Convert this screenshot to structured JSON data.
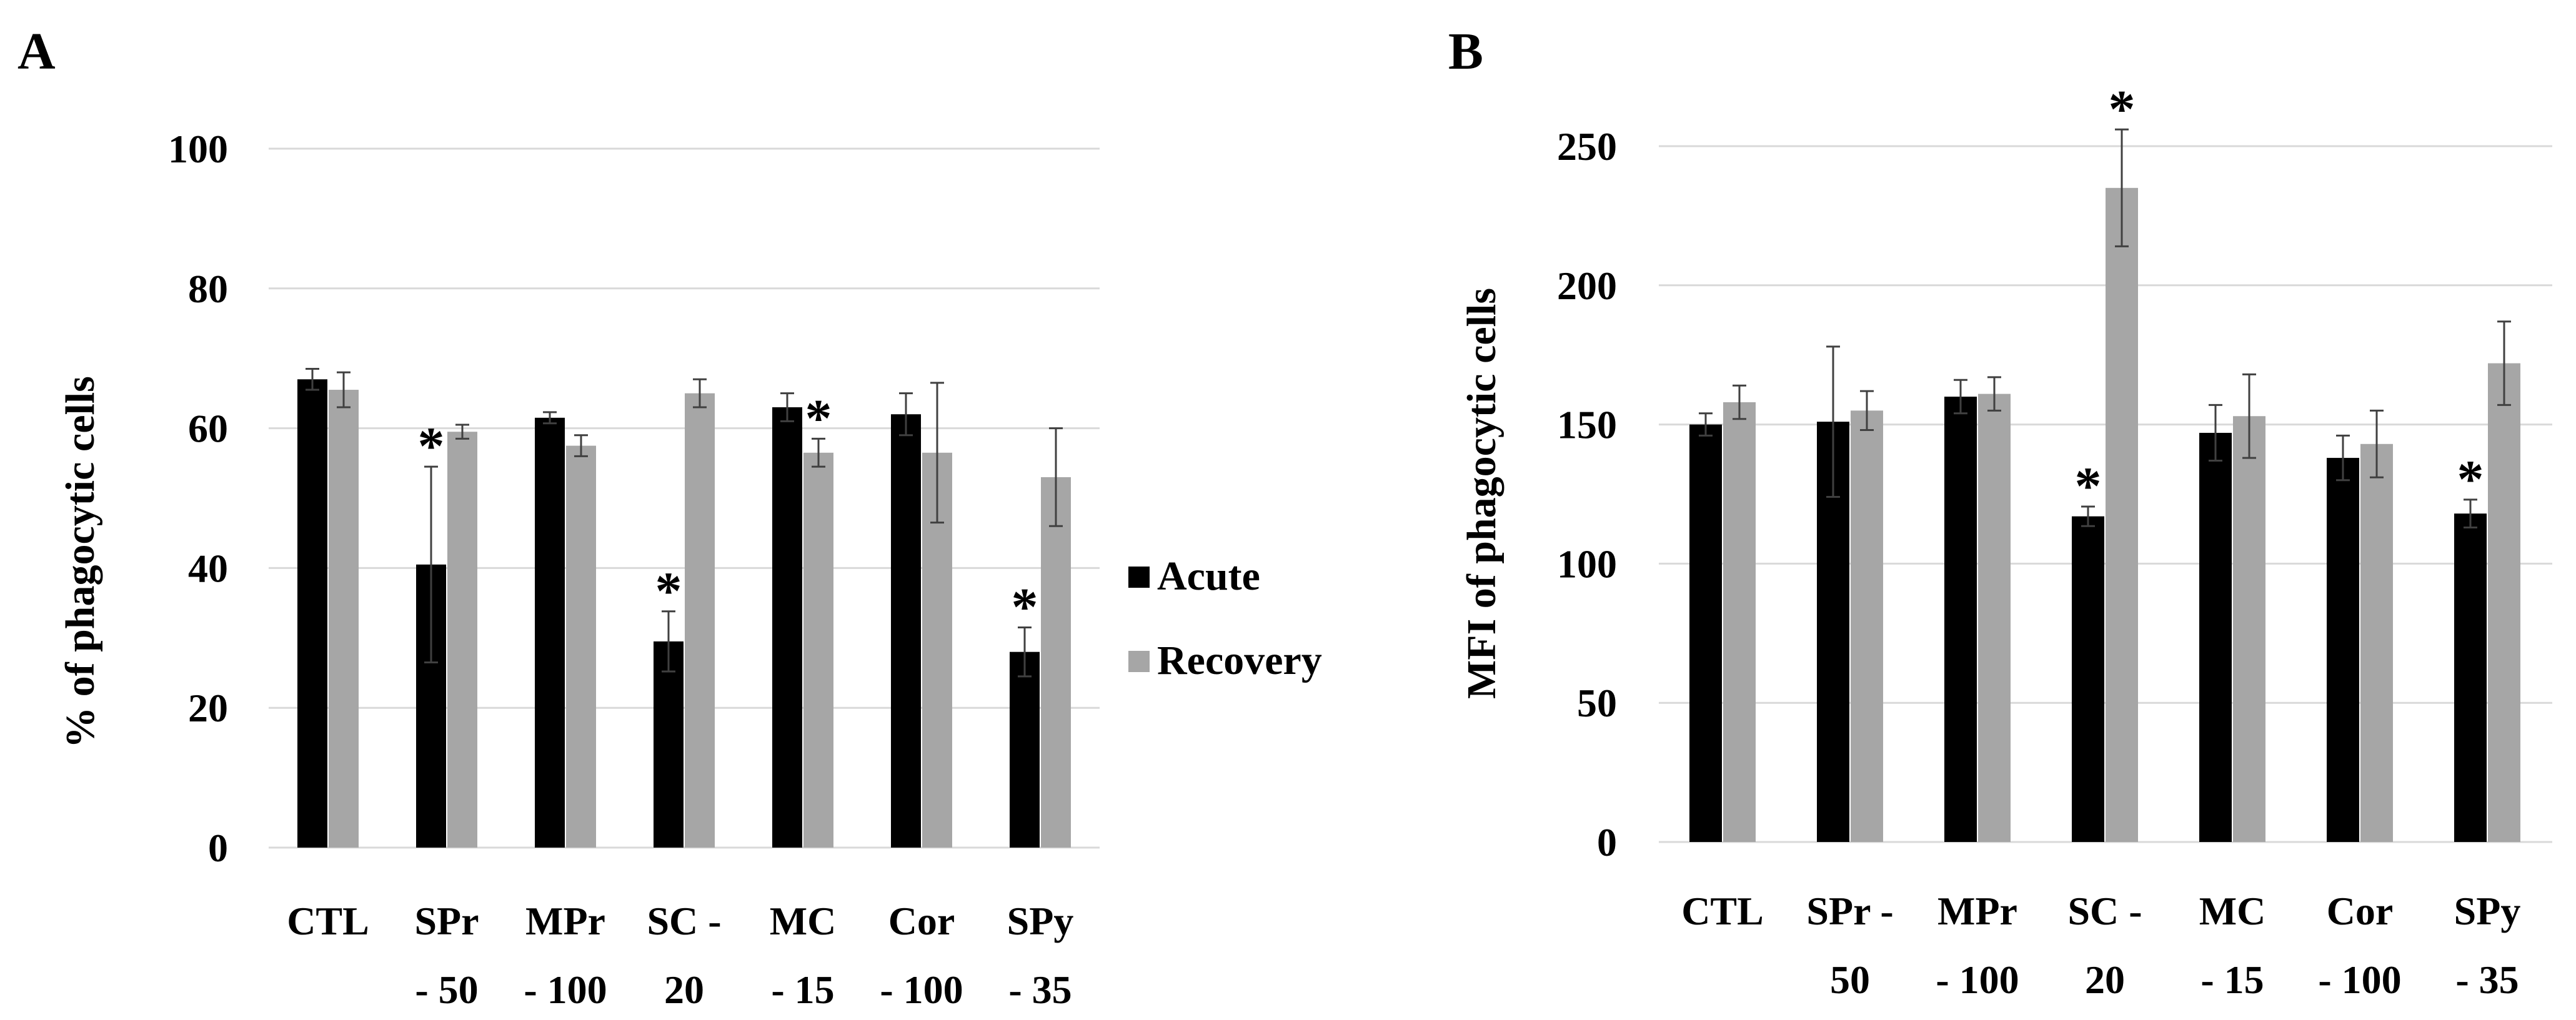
{
  "colors": {
    "acute": "#000000",
    "recovery": "#a6a6a6",
    "grid": "#d9d9d9",
    "error": "#404040"
  },
  "legend": {
    "acute": "Acute",
    "recovery": "Recovery"
  },
  "chart_data": [
    {
      "panel": "A",
      "type": "bar",
      "ylabel": "% of phagocytic cells",
      "ylim": [
        0,
        100
      ],
      "yticks": [
        0,
        20,
        40,
        60,
        80,
        100
      ],
      "grid": true,
      "legend_position": "right",
      "categories": [
        [
          "CTL"
        ],
        [
          "SPr",
          "- 50"
        ],
        [
          "MPr",
          "- 100"
        ],
        [
          "SC -",
          "20"
        ],
        [
          "MC",
          "- 15"
        ],
        [
          "Cor",
          "- 100"
        ],
        [
          "SPy",
          "- 35"
        ]
      ],
      "series": [
        {
          "name": "Acute",
          "values": [
            67,
            40.5,
            61.5,
            29.5,
            63,
            62,
            28
          ],
          "errors": [
            1.5,
            14,
            0.8,
            4.3,
            2,
            3,
            3.5
          ],
          "significant": [
            false,
            true,
            false,
            true,
            false,
            false,
            true
          ]
        },
        {
          "name": "Recovery",
          "values": [
            65.5,
            59.5,
            57.5,
            65,
            56.5,
            56.5,
            53
          ],
          "errors": [
            2.5,
            1,
            1.5,
            2,
            2,
            10,
            7
          ],
          "significant": [
            false,
            false,
            false,
            false,
            true,
            false,
            false
          ]
        }
      ]
    },
    {
      "panel": "B",
      "type": "bar",
      "ylabel": "MFI of phagocytic cells",
      "ylim": [
        0,
        250
      ],
      "yticks": [
        0,
        50,
        100,
        150,
        200,
        250
      ],
      "grid": true,
      "legend_position": "none",
      "categories": [
        [
          "CTL"
        ],
        [
          "SPr -",
          "50"
        ],
        [
          "MPr",
          "- 100"
        ],
        [
          "SC -",
          "20"
        ],
        [
          "MC",
          "- 15"
        ],
        [
          "Cor",
          "- 100"
        ],
        [
          "SPy",
          "- 35"
        ]
      ],
      "series": [
        {
          "name": "Acute",
          "values": [
            150,
            151,
            160,
            117,
            147,
            138,
            118
          ],
          "errors": [
            4,
            27,
            6,
            3.5,
            10,
            8,
            5
          ],
          "significant": [
            false,
            false,
            false,
            true,
            false,
            false,
            true
          ]
        },
        {
          "name": "Recovery",
          "values": [
            158,
            155,
            161,
            235,
            153,
            143,
            172
          ],
          "errors": [
            6,
            7,
            6,
            21,
            15,
            12,
            15
          ],
          "significant": [
            false,
            false,
            false,
            true,
            false,
            false,
            false
          ]
        }
      ]
    }
  ]
}
